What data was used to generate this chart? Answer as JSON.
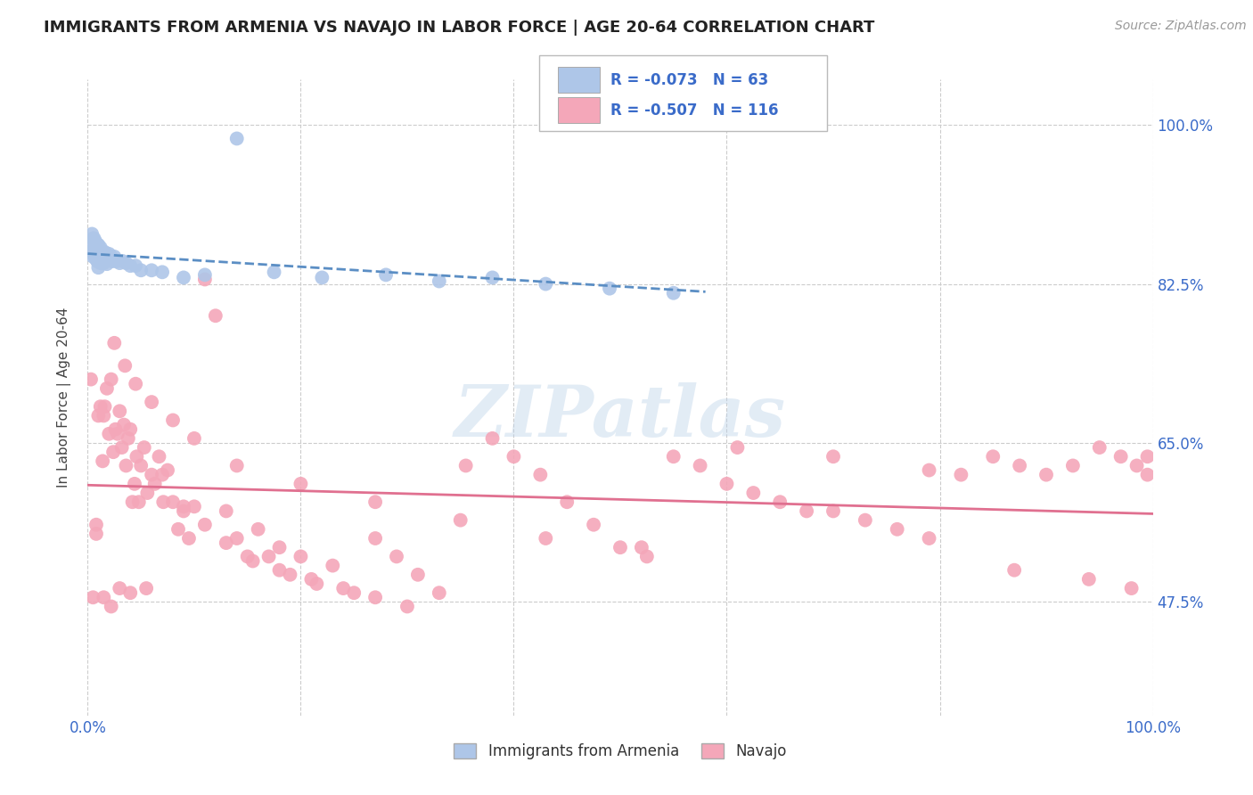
{
  "title": "IMMIGRANTS FROM ARMENIA VS NAVAJO IN LABOR FORCE | AGE 20-64 CORRELATION CHART",
  "source": "Source: ZipAtlas.com",
  "ylabel": "In Labor Force | Age 20-64",
  "xlim": [
    0.0,
    1.0
  ],
  "ylim": [
    0.35,
    1.05
  ],
  "yticks": [
    0.475,
    0.65,
    0.825,
    1.0
  ],
  "ytick_labels": [
    "47.5%",
    "65.0%",
    "82.5%",
    "100.0%"
  ],
  "legend_labels": [
    "Immigrants from Armenia",
    "Navajo"
  ],
  "armenia_R": -0.073,
  "armenia_N": 63,
  "navajo_R": -0.507,
  "navajo_N": 116,
  "armenia_color": "#aec6e8",
  "navajo_color": "#f4a7b9",
  "armenia_line_color": "#5b8ec4",
  "navajo_line_color": "#e07090",
  "watermark": "ZIPatlas",
  "background_color": "#ffffff",
  "grid_color": "#cccccc",
  "title_fontsize": 13,
  "axis_label_fontsize": 11,
  "tick_label_color": "#3a6bc9",
  "armenia_x": [
    0.004,
    0.004,
    0.005,
    0.005,
    0.005,
    0.006,
    0.006,
    0.006,
    0.007,
    0.007,
    0.007,
    0.008,
    0.008,
    0.008,
    0.009,
    0.009,
    0.009,
    0.01,
    0.01,
    0.01,
    0.01,
    0.011,
    0.011,
    0.012,
    0.012,
    0.012,
    0.013,
    0.013,
    0.014,
    0.014,
    0.015,
    0.015,
    0.016,
    0.016,
    0.017,
    0.018,
    0.018,
    0.019,
    0.02,
    0.021,
    0.022,
    0.023,
    0.025,
    0.027,
    0.03,
    0.033,
    0.036,
    0.04,
    0.045,
    0.05,
    0.06,
    0.07,
    0.09,
    0.11,
    0.14,
    0.175,
    0.22,
    0.28,
    0.33,
    0.38,
    0.43,
    0.49,
    0.55
  ],
  "armenia_y": [
    0.88,
    0.868,
    0.875,
    0.862,
    0.855,
    0.875,
    0.865,
    0.858,
    0.872,
    0.862,
    0.855,
    0.87,
    0.86,
    0.852,
    0.868,
    0.86,
    0.85,
    0.868,
    0.858,
    0.85,
    0.843,
    0.862,
    0.852,
    0.865,
    0.855,
    0.848,
    0.86,
    0.85,
    0.858,
    0.848,
    0.858,
    0.848,
    0.86,
    0.85,
    0.855,
    0.855,
    0.847,
    0.852,
    0.858,
    0.852,
    0.855,
    0.85,
    0.855,
    0.85,
    0.848,
    0.85,
    0.848,
    0.845,
    0.845,
    0.84,
    0.84,
    0.838,
    0.832,
    0.835,
    0.985,
    0.838,
    0.832,
    0.835,
    0.828,
    0.832,
    0.825,
    0.82,
    0.815
  ],
  "navajo_x": [
    0.003,
    0.005,
    0.008,
    0.01,
    0.012,
    0.014,
    0.016,
    0.018,
    0.02,
    0.022,
    0.024,
    0.026,
    0.028,
    0.03,
    0.032,
    0.034,
    0.036,
    0.038,
    0.04,
    0.042,
    0.044,
    0.046,
    0.048,
    0.05,
    0.053,
    0.056,
    0.06,
    0.063,
    0.067,
    0.071,
    0.075,
    0.08,
    0.085,
    0.09,
    0.095,
    0.1,
    0.11,
    0.12,
    0.13,
    0.14,
    0.15,
    0.16,
    0.17,
    0.18,
    0.19,
    0.2,
    0.215,
    0.23,
    0.25,
    0.27,
    0.29,
    0.31,
    0.33,
    0.355,
    0.38,
    0.4,
    0.425,
    0.45,
    0.475,
    0.5,
    0.525,
    0.55,
    0.575,
    0.6,
    0.625,
    0.65,
    0.675,
    0.7,
    0.73,
    0.76,
    0.79,
    0.82,
    0.85,
    0.875,
    0.9,
    0.925,
    0.95,
    0.97,
    0.985,
    0.995,
    0.015,
    0.025,
    0.035,
    0.045,
    0.06,
    0.08,
    0.1,
    0.14,
    0.2,
    0.27,
    0.35,
    0.43,
    0.52,
    0.61,
    0.7,
    0.79,
    0.87,
    0.94,
    0.98,
    0.995,
    0.008,
    0.015,
    0.022,
    0.03,
    0.04,
    0.055,
    0.07,
    0.09,
    0.11,
    0.13,
    0.155,
    0.18,
    0.21,
    0.24,
    0.27,
    0.3
  ],
  "navajo_y": [
    0.72,
    0.48,
    0.56,
    0.68,
    0.69,
    0.63,
    0.69,
    0.71,
    0.66,
    0.72,
    0.64,
    0.665,
    0.66,
    0.685,
    0.645,
    0.67,
    0.625,
    0.655,
    0.665,
    0.585,
    0.605,
    0.635,
    0.585,
    0.625,
    0.645,
    0.595,
    0.615,
    0.605,
    0.635,
    0.585,
    0.62,
    0.585,
    0.555,
    0.575,
    0.545,
    0.58,
    0.83,
    0.79,
    0.575,
    0.545,
    0.525,
    0.555,
    0.525,
    0.535,
    0.505,
    0.525,
    0.495,
    0.515,
    0.485,
    0.545,
    0.525,
    0.505,
    0.485,
    0.625,
    0.655,
    0.635,
    0.615,
    0.585,
    0.56,
    0.535,
    0.525,
    0.635,
    0.625,
    0.605,
    0.595,
    0.585,
    0.575,
    0.575,
    0.565,
    0.555,
    0.545,
    0.615,
    0.635,
    0.625,
    0.615,
    0.625,
    0.645,
    0.635,
    0.625,
    0.635,
    0.68,
    0.76,
    0.735,
    0.715,
    0.695,
    0.675,
    0.655,
    0.625,
    0.605,
    0.585,
    0.565,
    0.545,
    0.535,
    0.645,
    0.635,
    0.62,
    0.51,
    0.5,
    0.49,
    0.615,
    0.55,
    0.48,
    0.47,
    0.49,
    0.485,
    0.49,
    0.615,
    0.58,
    0.56,
    0.54,
    0.52,
    0.51,
    0.5,
    0.49,
    0.48,
    0.47
  ]
}
